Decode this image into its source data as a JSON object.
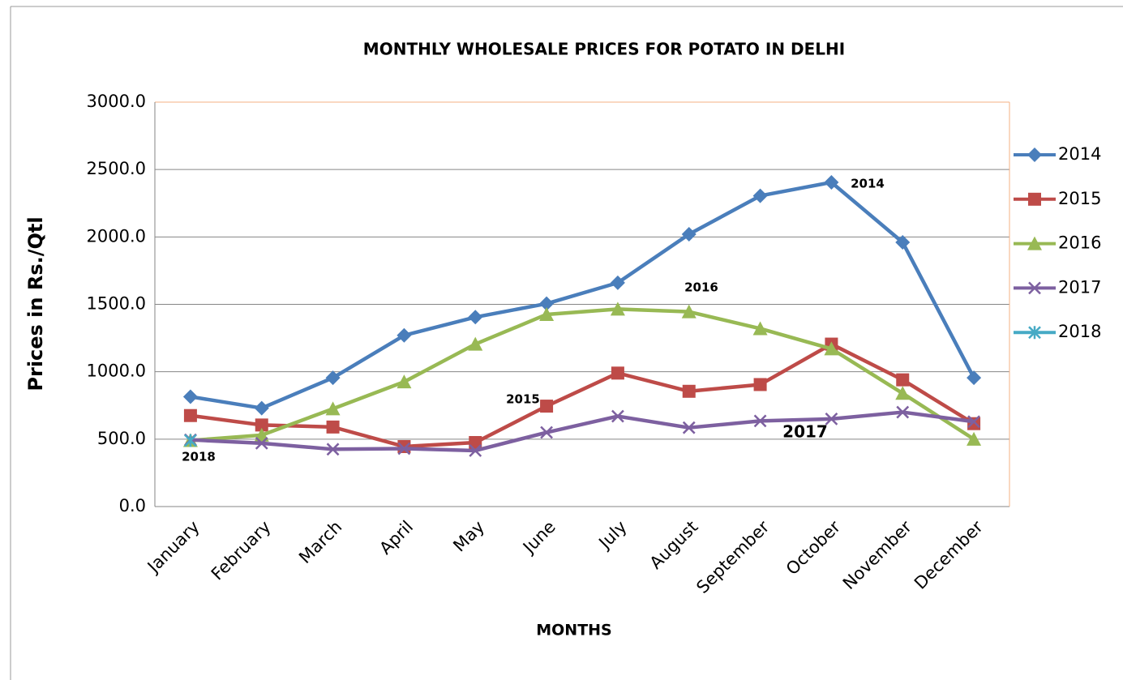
{
  "chart_data": {
    "type": "line",
    "title": "MONTHLY WHOLESALE PRICES FOR POTATO IN DELHI",
    "x_label": "MONTHS",
    "y_label": "Prices in Rs./Qtl",
    "categories": [
      "January",
      "February",
      "March",
      "April",
      "May",
      "June",
      "July",
      "August",
      "September",
      "October",
      "November",
      "December"
    ],
    "series": [
      {
        "name": "2014",
        "color": "#4a7ebb",
        "marker": "diamond",
        "values": [
          815,
          730,
          955,
          1270,
          1405,
          1505,
          1660,
          2020,
          2305,
          2405,
          1960,
          955
        ]
      },
      {
        "name": "2015",
        "color": "#be4b48",
        "marker": "square",
        "values": [
          675,
          605,
          590,
          445,
          475,
          745,
          990,
          855,
          905,
          1205,
          940,
          615
        ]
      },
      {
        "name": "2016",
        "color": "#98b954",
        "marker": "triangle",
        "values": [
          490,
          530,
          725,
          925,
          1205,
          1425,
          1465,
          1445,
          1320,
          1170,
          840,
          500
        ]
      },
      {
        "name": "2017",
        "color": "#7d60a0",
        "marker": "x",
        "values": [
          495,
          470,
          425,
          430,
          415,
          550,
          670,
          585,
          635,
          650,
          700,
          630
        ]
      },
      {
        "name": "2018",
        "color": "#46aac5",
        "marker": "star",
        "values": [
          490,
          null,
          null,
          null,
          null,
          null,
          null,
          null,
          null,
          null,
          null,
          null
        ]
      }
    ],
    "annotations": [
      "2014",
      "2016",
      "2015",
      "2017",
      "2018"
    ],
    "ylim": [
      0,
      3000
    ],
    "yticks": [
      {
        "value": 0,
        "label": "0.0"
      },
      {
        "value": 500,
        "label": "500.0"
      },
      {
        "value": 1000,
        "label": "1000.0"
      },
      {
        "value": 1500,
        "label": "1500.0"
      },
      {
        "value": 2000,
        "label": "2000.0"
      },
      {
        "value": 2500,
        "label": "2500.0"
      },
      {
        "value": 3000,
        "label": "3000.0"
      }
    ],
    "grid": true,
    "legend": "right"
  }
}
